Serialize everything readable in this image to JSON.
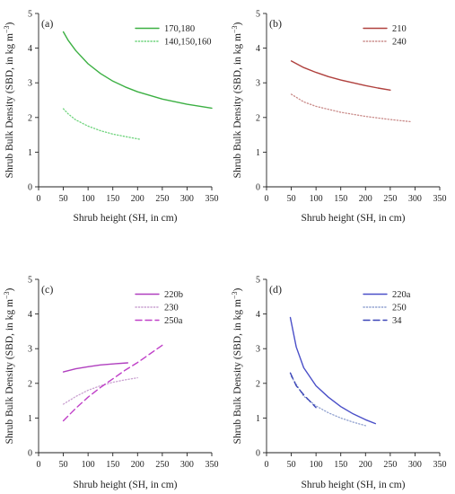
{
  "chart_data": [
    {
      "type": "line",
      "panel_label": "(a)",
      "xlabel": "Shrub height (SH, in cm)",
      "ylabel_main": "Shrub Bulk Density (SBD, in kg m",
      "ylabel_sup": "−3",
      "ylabel_end": ")",
      "xlim": [
        0,
        350
      ],
      "ylim": [
        0,
        5
      ],
      "xticks": [
        0,
        50,
        100,
        150,
        200,
        250,
        300,
        350
      ],
      "yticks": [
        0,
        1,
        2,
        3,
        4,
        5
      ],
      "legend_position": "top-right",
      "series": [
        {
          "name": "170,180",
          "color": "#3cb043",
          "dash": "solid",
          "x": [
            50,
            60,
            75,
            100,
            125,
            150,
            175,
            200,
            250,
            300,
            350
          ],
          "y": [
            4.47,
            4.22,
            3.93,
            3.55,
            3.27,
            3.05,
            2.88,
            2.74,
            2.53,
            2.38,
            2.27
          ]
        },
        {
          "name": "140,150,160",
          "color": "#6cd37a",
          "dash": "dotted",
          "x": [
            50,
            60,
            75,
            100,
            125,
            150,
            175,
            205
          ],
          "y": [
            2.25,
            2.1,
            1.93,
            1.75,
            1.62,
            1.52,
            1.45,
            1.37
          ]
        }
      ]
    },
    {
      "type": "line",
      "panel_label": "(b)",
      "xlabel": "Shrub height (SH, in cm)",
      "ylabel_main": "Shrub Bulk Density (SBD, in kg m",
      "ylabel_sup": "−3",
      "ylabel_end": ")",
      "xlim": [
        0,
        350
      ],
      "ylim": [
        0,
        5
      ],
      "xticks": [
        0,
        50,
        100,
        150,
        200,
        250,
        300,
        350
      ],
      "yticks": [
        0,
        1,
        2,
        3,
        4,
        5
      ],
      "legend_position": "top-right",
      "series": [
        {
          "name": "210",
          "color": "#b0413e",
          "dash": "solid",
          "x": [
            50,
            75,
            100,
            125,
            150,
            175,
            200,
            225,
            250
          ],
          "y": [
            3.63,
            3.44,
            3.3,
            3.18,
            3.08,
            3.0,
            2.92,
            2.85,
            2.79
          ]
        },
        {
          "name": "240",
          "color": "#c98a88",
          "dash": "dotted",
          "x": [
            50,
            75,
            100,
            150,
            200,
            250,
            290
          ],
          "y": [
            2.67,
            2.45,
            2.32,
            2.15,
            2.03,
            1.94,
            1.88
          ]
        }
      ]
    },
    {
      "type": "line",
      "panel_label": "(c)",
      "xlabel": "Shrub height (SH, in cm)",
      "ylabel_main": "Shrub Bulk Density (SBD, in kg m",
      "ylabel_sup": "−3",
      "ylabel_end": ")",
      "xlim": [
        0,
        350
      ],
      "ylim": [
        0,
        5
      ],
      "xticks": [
        0,
        50,
        100,
        150,
        200,
        250,
        300,
        350
      ],
      "yticks": [
        0,
        1,
        2,
        3,
        4,
        5
      ],
      "legend_position": "top-right",
      "series": [
        {
          "name": "220b",
          "color": "#b03fbf",
          "dash": "solid",
          "x": [
            50,
            75,
            100,
            125,
            150,
            180
          ],
          "y": [
            2.33,
            2.42,
            2.48,
            2.53,
            2.56,
            2.59
          ]
        },
        {
          "name": "230",
          "color": "#c9a0d0",
          "dash": "dotted",
          "x": [
            50,
            75,
            100,
            125,
            150,
            175,
            200
          ],
          "y": [
            1.4,
            1.62,
            1.8,
            1.93,
            2.03,
            2.1,
            2.16
          ]
        },
        {
          "name": "250a",
          "color": "#c040c8",
          "dash": "dashed",
          "x": [
            50,
            75,
            100,
            125,
            150,
            175,
            200,
            225,
            250
          ],
          "y": [
            0.92,
            1.28,
            1.6,
            1.88,
            2.13,
            2.38,
            2.6,
            2.85,
            3.1
          ]
        }
      ]
    },
    {
      "type": "line",
      "panel_label": "(d)",
      "xlabel": "Shrub height (SH, in cm)",
      "ylabel_main": "Shrub Bulk Density (SBD, in kg m",
      "ylabel_sup": "−3",
      "ylabel_end": ")",
      "xlim": [
        0,
        350
      ],
      "ylim": [
        0,
        5
      ],
      "xticks": [
        0,
        50,
        100,
        150,
        200,
        250,
        300,
        350
      ],
      "yticks": [
        0,
        1,
        2,
        3,
        4,
        5
      ],
      "legend_position": "top-right",
      "series": [
        {
          "name": "220a",
          "color": "#4a4fc8",
          "dash": "solid",
          "x": [
            48,
            60,
            75,
            100,
            125,
            150,
            175,
            200,
            220
          ],
          "y": [
            3.9,
            3.05,
            2.45,
            1.93,
            1.6,
            1.33,
            1.12,
            0.95,
            0.84
          ]
        },
        {
          "name": "250",
          "color": "#8fa0cf",
          "dash": "dotted",
          "x": [
            50,
            75,
            100,
            125,
            150,
            175,
            200
          ],
          "y": [
            2.2,
            1.63,
            1.35,
            1.15,
            1.0,
            0.88,
            0.78
          ]
        },
        {
          "name": "34",
          "color": "#3b45b8",
          "dash": "dashed",
          "x": [
            48,
            60,
            75,
            90,
            100
          ],
          "y": [
            2.3,
            1.93,
            1.67,
            1.45,
            1.3
          ]
        }
      ]
    }
  ]
}
